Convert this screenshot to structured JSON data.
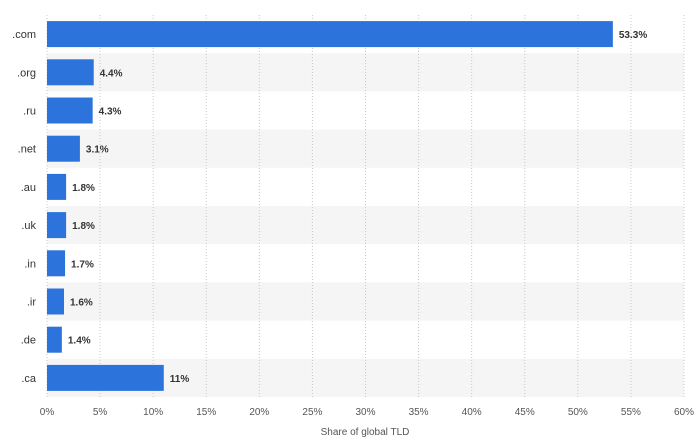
{
  "chart_data": {
    "type": "bar",
    "orientation": "horizontal",
    "categories": [
      ".com",
      ".org",
      ".ru",
      ".net",
      ".au",
      ".uk",
      ".in",
      ".ir",
      ".de",
      ".ca"
    ],
    "values": [
      53.3,
      4.4,
      4.3,
      3.1,
      1.8,
      1.8,
      1.7,
      1.6,
      1.4,
      11
    ],
    "value_labels": [
      "53.3%",
      "4.4%",
      "4.3%",
      "3.1%",
      "1.8%",
      "1.8%",
      "1.7%",
      "1.6%",
      "1.4%",
      "11%"
    ],
    "xlabel": "Share of global TLD",
    "xlim": [
      0,
      60
    ],
    "xticks": [
      "0%",
      "5%",
      "10%",
      "15%",
      "20%",
      "25%",
      "30%",
      "35%",
      "40%",
      "45%",
      "50%",
      "55%",
      "60%"
    ],
    "grid": true,
    "bar_color": "#2c73dc",
    "band_color": "#f5f5f5"
  }
}
